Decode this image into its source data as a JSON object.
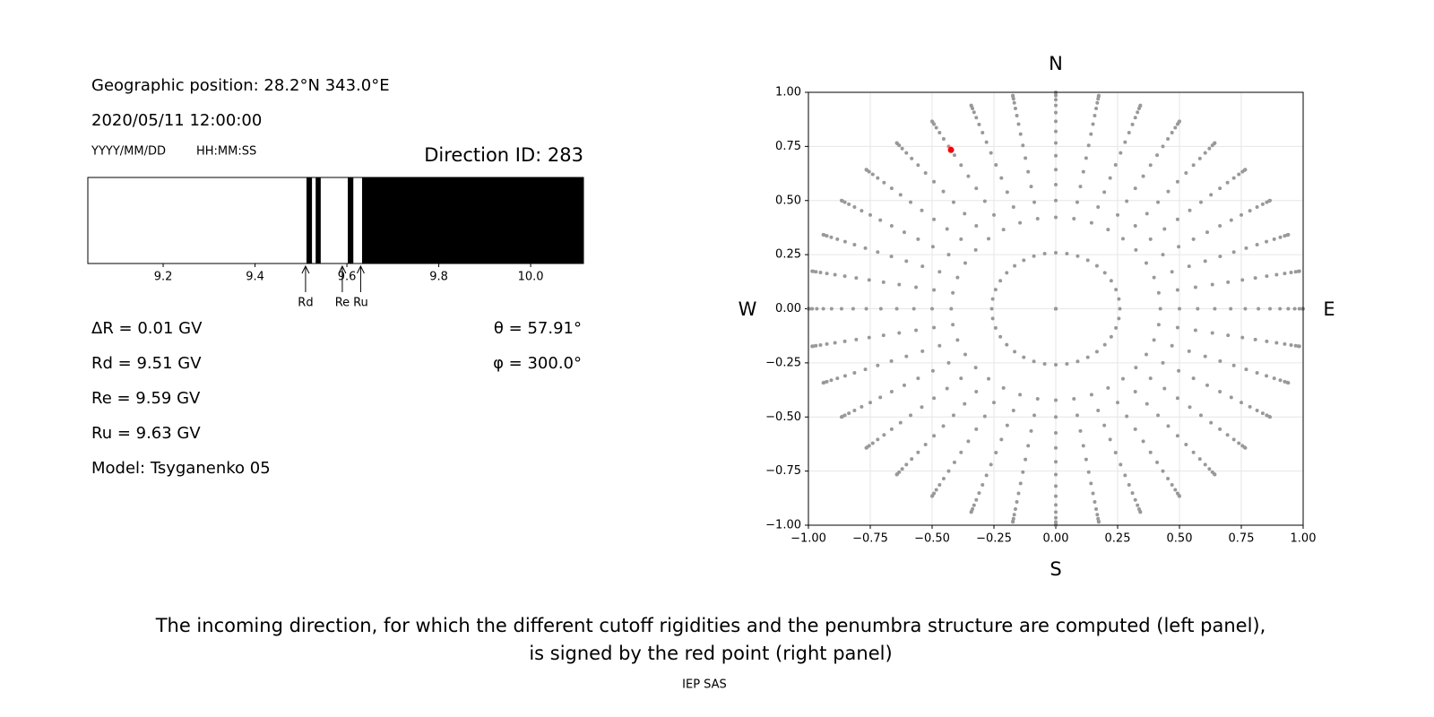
{
  "info": {
    "position": "Geographic position: 28.2°N 343.0°E",
    "datetime": "2020/05/11 12:00:00",
    "date_format": "YYYY/MM/DD",
    "time_format": "HH:MM:SS",
    "direction_id": "Direction ID: 283",
    "delta_r": "ΔR = 0.01 GV",
    "rd": "Rd = 9.51 GV",
    "re": "Re = 9.59 GV",
    "ru": "Ru = 9.63 GV",
    "model": "Model: Tsyganenko 05",
    "theta": "θ = 57.91°",
    "phi": "φ = 300.0°"
  },
  "chart_data": [
    {
      "type": "penumbra",
      "xlim": [
        9.036,
        10.115
      ],
      "xticks": [
        9.2,
        9.4,
        9.6,
        9.8,
        {
          "value": 10.0,
          "label": "10.0"
        }
      ],
      "segments": [
        [
          9.512,
          9.524
        ],
        [
          9.532,
          9.543
        ],
        [
          9.602,
          9.614
        ],
        [
          9.633,
          10.115
        ]
      ],
      "color": "#000000",
      "markers": [
        {
          "label": "Rd",
          "value": 9.51
        },
        {
          "label": "Re",
          "value": 9.59
        },
        {
          "label": "Ru",
          "value": 9.63
        }
      ]
    },
    {
      "type": "sky",
      "xlim": [
        -1,
        1
      ],
      "ylim": [
        -1,
        1
      ],
      "xticks": [
        {
          "value": -1,
          "label": "−1.00"
        },
        {
          "value": -0.75,
          "label": "−0.75"
        },
        {
          "value": -0.5,
          "label": "−0.50"
        },
        {
          "value": -0.25,
          "label": "−0.25"
        },
        {
          "value": 0,
          "label": "0.00"
        },
        {
          "value": 0.25,
          "label": "0.25"
        },
        {
          "value": 0.5,
          "label": "0.50"
        },
        {
          "value": 0.75,
          "label": "0.75"
        },
        {
          "value": 1,
          "label": "1.00"
        }
      ],
      "yticks": [
        {
          "value": -1,
          "label": "−1.00"
        },
        {
          "value": -0.75,
          "label": "−0.75"
        },
        {
          "value": -0.5,
          "label": "−0.50"
        },
        {
          "value": -0.25,
          "label": "−0.25"
        },
        {
          "value": 0,
          "label": "0.00"
        },
        {
          "value": 0.25,
          "label": "0.25"
        },
        {
          "value": 0.5,
          "label": "0.50"
        },
        {
          "value": 0.75,
          "label": "0.75"
        },
        {
          "value": 1,
          "label": "1.00"
        }
      ],
      "grid": true,
      "directions": {
        "N": "N",
        "S": "S",
        "E": "E",
        "W": "W"
      },
      "theta": [
        0,
        15,
        25,
        30,
        35,
        40,
        45,
        50,
        55,
        60,
        65,
        70,
        75,
        80,
        85,
        90
      ],
      "phi": [
        0,
        10,
        20,
        30,
        40,
        50,
        60,
        70,
        80,
        90,
        100,
        110,
        120,
        130,
        140,
        150,
        160,
        170,
        180,
        190,
        200,
        210,
        220,
        230,
        240,
        250,
        260,
        270,
        280,
        290,
        300,
        310,
        320,
        330,
        340,
        350
      ],
      "color": "#999999",
      "selected": {
        "theta": 57.91,
        "phi": 300.0,
        "color": "#ff0000"
      }
    }
  ],
  "caption": [
    "The incoming direction, for which the different cutoff rigidities and the penumbra structure are computed (left panel),",
    "is signed by the red point (right panel)"
  ],
  "footer": "IEP SAS"
}
